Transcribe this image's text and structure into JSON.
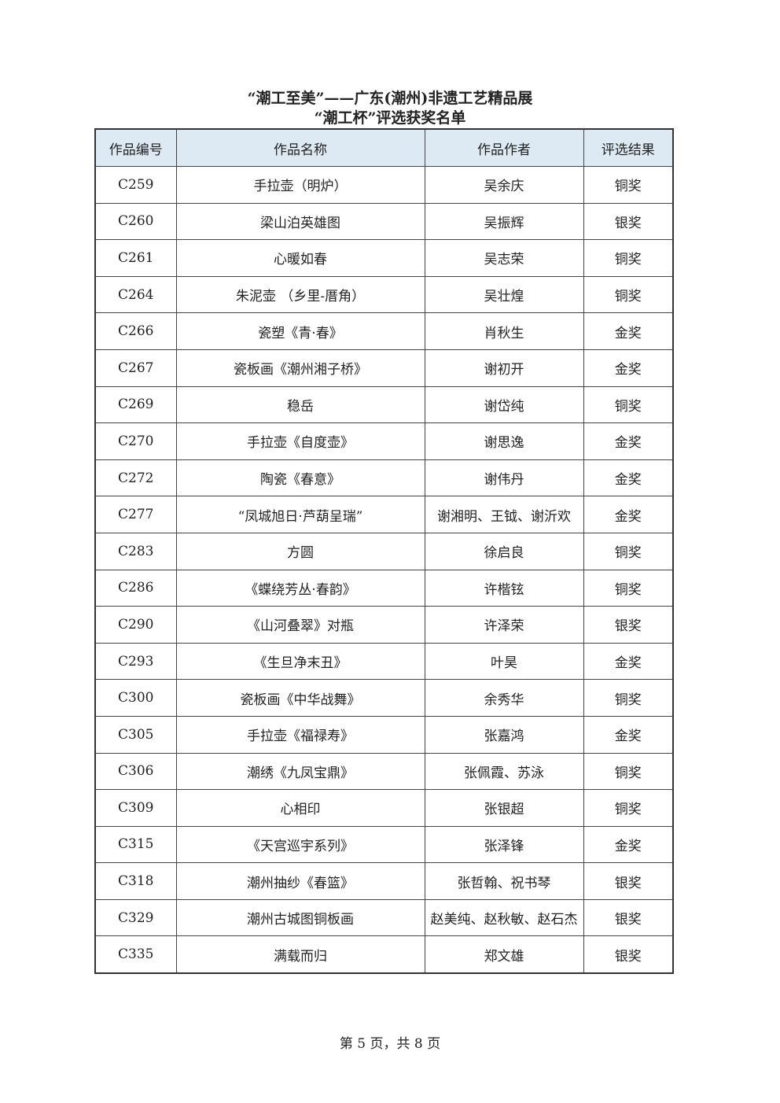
{
  "title_line1": "“潮工至美”——广东(潮州)非遗工艺精品展",
  "title_line2": "“潮工杯”评选获奖名单",
  "columns": [
    "作品编号",
    "作品名称",
    "作品作者",
    "评选结果"
  ],
  "rows": [
    [
      "C259",
      "手拉壶（明炉）",
      "吴余庆",
      "铜奖"
    ],
    [
      "C260",
      "梁山泊英雄图",
      "吴振辉",
      "银奖"
    ],
    [
      "C261",
      "心暖如春",
      "吴志荣",
      "铜奖"
    ],
    [
      "C264",
      "朱泥壶 （乡里-厝角）",
      "吴壮煌",
      "铜奖"
    ],
    [
      "C266",
      "瓷塑《青·春》",
      "肖秋生",
      "金奖"
    ],
    [
      "C267",
      "瓷板画《潮州湘子桥》",
      "谢初开",
      "金奖"
    ],
    [
      "C269",
      "稳岳",
      "谢岱纯",
      "铜奖"
    ],
    [
      "C270",
      "手拉壶《自度壶》",
      "谢思逸",
      "金奖"
    ],
    [
      "C272",
      "陶瓷《春意》",
      "谢伟丹",
      "金奖"
    ],
    [
      "C277",
      "“凤城旭日·芦葫呈瑞”",
      "谢湘明、王钺、谢沂欢",
      "金奖"
    ],
    [
      "C283",
      "方圆",
      "徐启良",
      "铜奖"
    ],
    [
      "C286",
      "《蝶绕芳丛·春韵》",
      "许楷铉",
      "铜奖"
    ],
    [
      "C290",
      "《山河叠翠》对瓶",
      "许泽荣",
      "银奖"
    ],
    [
      "C293",
      "《生旦净末丑》",
      "叶昊",
      "金奖"
    ],
    [
      "C300",
      "瓷板画《中华战舞》",
      "余秀华",
      "铜奖"
    ],
    [
      "C305",
      "手拉壶《福禄寿》",
      "张嘉鸿",
      "金奖"
    ],
    [
      "C306",
      "潮绣《九凤宝鼎》",
      "张佩霞、苏泳",
      "铜奖"
    ],
    [
      "C309",
      "心相印",
      "张银超",
      "铜奖"
    ],
    [
      "C315",
      "《天宫巡宇系列》",
      "张泽锋",
      "金奖"
    ],
    [
      "C318",
      "潮州抽纱《春篮》",
      "张哲翰、祝书琴",
      "银奖"
    ],
    [
      "C329",
      "潮州古城图铜板画",
      "赵美纯、赵秋敏、赵石杰",
      "银奖"
    ],
    [
      "C335",
      "满载而归",
      "郑文雄",
      "银奖"
    ]
  ],
  "footer": "第 5 页，共 8 页",
  "colors": {
    "header_bg": "#dde9f3"
  }
}
